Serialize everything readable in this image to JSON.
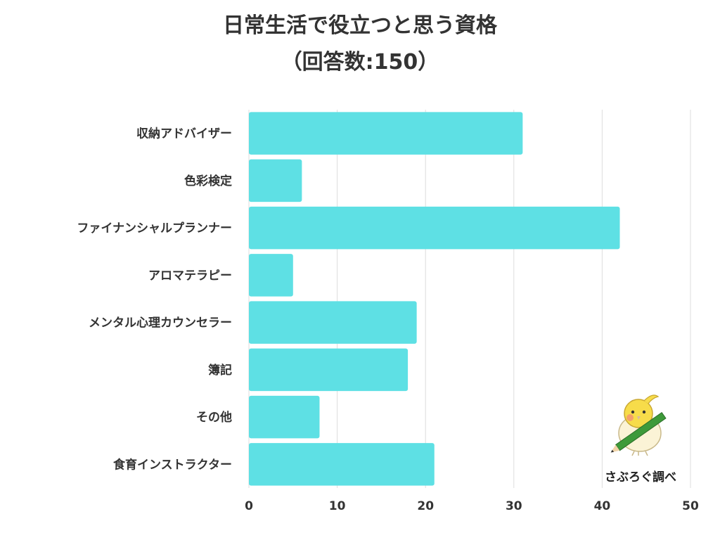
{
  "chart_data": {
    "type": "bar",
    "orientation": "horizontal",
    "title": "日常生活で役立つと思う資格",
    "subtitle": "（回答数:150）",
    "categories": [
      "収納アドバイザー",
      "色彩検定",
      "ファイナンシャルプランナー",
      "アロマテラピー",
      "メンタル心理カウンセラー",
      "簿記",
      "その他",
      "食育インストラクター"
    ],
    "values": [
      31,
      6,
      42,
      5,
      19,
      18,
      8,
      21
    ],
    "xlim": [
      0,
      50
    ],
    "xticks": [
      0,
      10,
      20,
      30,
      40,
      50
    ],
    "grid": true,
    "bar_color": "#5ee0e4",
    "grid_color": "#dddddd",
    "xlabel": "",
    "ylabel": ""
  },
  "credit": {
    "text": "さぶろぐ調べ",
    "mascot_icon": "bird-with-pencil-icon"
  }
}
